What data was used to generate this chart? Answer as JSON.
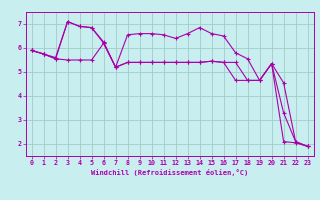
{
  "xlabel": "Windchill (Refroidissement éolien,°C)",
  "xlim": [
    -0.5,
    23.5
  ],
  "ylim": [
    1.5,
    7.5
  ],
  "yticks": [
    2,
    3,
    4,
    5,
    6,
    7
  ],
  "xticks": [
    0,
    1,
    2,
    3,
    4,
    5,
    6,
    7,
    8,
    9,
    10,
    11,
    12,
    13,
    14,
    15,
    16,
    17,
    18,
    19,
    20,
    21,
    22,
    23
  ],
  "background_color": "#c8eef0",
  "grid_color": "#a0ccc8",
  "line_color": "#aa00aa",
  "lines": [
    {
      "x": [
        0,
        1,
        2,
        3,
        4,
        5,
        6,
        7,
        8,
        9,
        10,
        11,
        12,
        13,
        14,
        15,
        16,
        17,
        18,
        19,
        20,
        21,
        22,
        23
      ],
      "y": [
        5.9,
        5.75,
        5.6,
        7.1,
        6.9,
        6.85,
        6.25,
        5.2,
        6.55,
        6.6,
        6.6,
        6.55,
        6.4,
        6.6,
        6.85,
        6.6,
        6.5,
        5.8,
        5.55,
        4.65,
        5.35,
        2.1,
        2.05,
        1.9
      ]
    },
    {
      "x": [
        0,
        1,
        2,
        3,
        4,
        5,
        6,
        7,
        8,
        9,
        10,
        11,
        12,
        13,
        14,
        15,
        16,
        17,
        18,
        19,
        20,
        21,
        22,
        23
      ],
      "y": [
        5.9,
        5.75,
        5.55,
        5.5,
        5.5,
        5.5,
        6.2,
        5.2,
        5.4,
        5.4,
        5.4,
        5.4,
        5.4,
        5.4,
        5.4,
        5.45,
        5.4,
        5.4,
        4.65,
        4.65,
        5.35,
        3.3,
        2.1,
        1.9
      ]
    },
    {
      "x": [
        0,
        1,
        2,
        3,
        4,
        5,
        6,
        7,
        8,
        9,
        10,
        11,
        12,
        13,
        14,
        15,
        16,
        17,
        18,
        19,
        20,
        21,
        22,
        23
      ],
      "y": [
        5.9,
        5.75,
        5.55,
        7.1,
        6.9,
        6.85,
        6.2,
        5.2,
        5.4,
        5.4,
        5.4,
        5.4,
        5.4,
        5.4,
        5.4,
        5.45,
        5.4,
        4.65,
        4.65,
        4.65,
        5.35,
        4.55,
        2.1,
        1.9
      ]
    }
  ]
}
